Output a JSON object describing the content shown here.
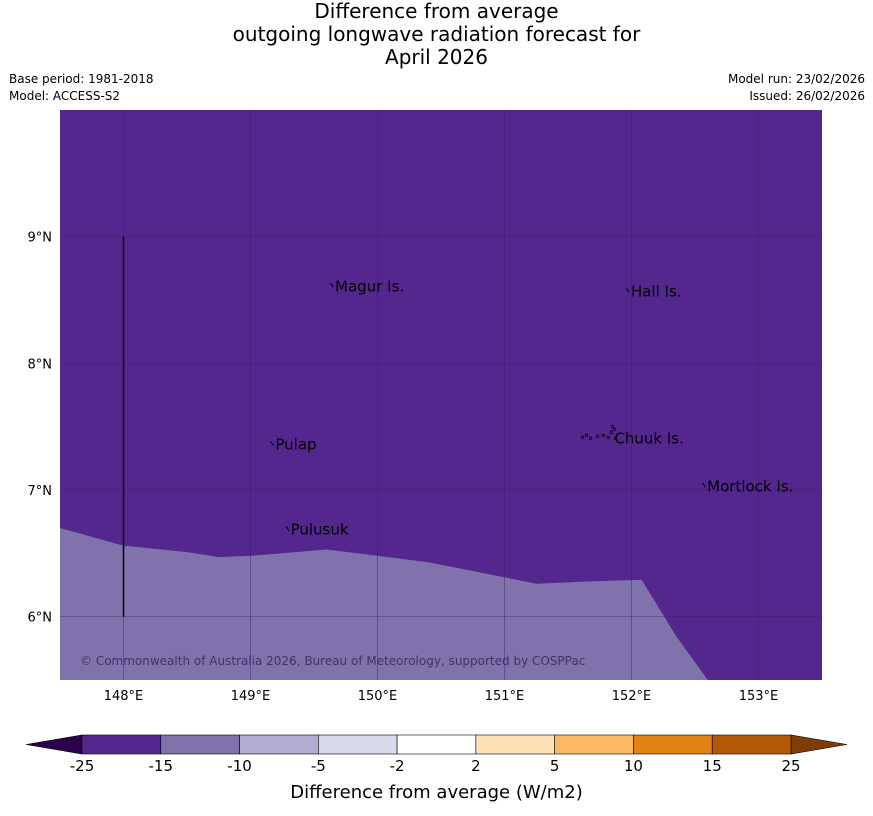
{
  "title": {
    "line1": "Difference from average",
    "line2": "outgoing longwave radiation forecast for",
    "line3": "April 2026"
  },
  "meta": {
    "base_period": "Base period: 1981-2018",
    "model": "Model: ACCESS-S2",
    "model_run": "Model run: 23/02/2026",
    "issued": "Issued: 26/02/2026"
  },
  "map": {
    "lon_range": [
      147.5,
      153.5
    ],
    "lat_range": [
      5.5,
      10.0
    ],
    "lon_ticks": [
      {
        "value": 148,
        "label": "148°E"
      },
      {
        "value": 149,
        "label": "149°E"
      },
      {
        "value": 150,
        "label": "150°E"
      },
      {
        "value": 151,
        "label": "151°E"
      },
      {
        "value": 152,
        "label": "152°E"
      },
      {
        "value": 153,
        "label": "153°E"
      }
    ],
    "lat_ticks": [
      {
        "value": 9,
        "label": "9°N"
      },
      {
        "value": 8,
        "label": "8°N"
      },
      {
        "value": 7,
        "label": "7°N"
      },
      {
        "value": 6,
        "label": "6°N"
      }
    ],
    "grid": true,
    "colors": {
      "band_minus25_minus15": "#54278f",
      "band_minus15_minus10": "#8073ac",
      "grid": "#3a1c66"
    },
    "boundary_lon_lat": [
      [
        147.5,
        6.7
      ],
      [
        148.0,
        6.56
      ],
      [
        148.5,
        6.51
      ],
      [
        148.75,
        6.47
      ],
      [
        149.0,
        6.48
      ],
      [
        149.6,
        6.53
      ],
      [
        150.4,
        6.43
      ],
      [
        150.8,
        6.35
      ],
      [
        151.25,
        6.26
      ],
      [
        151.7,
        6.28
      ],
      [
        152.08,
        6.29
      ],
      [
        152.35,
        5.85
      ],
      [
        152.6,
        5.5
      ]
    ],
    "places": [
      {
        "name": "Magur Is.",
        "lon": 149.65,
        "lat": 8.6
      },
      {
        "name": "Hall Is.",
        "lon": 151.98,
        "lat": 8.56
      },
      {
        "name": "Pulap",
        "lon": 149.18,
        "lat": 7.35
      },
      {
        "name": "Chuuk Is.",
        "lon": 151.85,
        "lat": 7.4
      },
      {
        "name": "Mortlock Is.",
        "lon": 152.58,
        "lat": 7.02
      },
      {
        "name": "Pulusuk",
        "lon": 149.3,
        "lat": 6.68
      }
    ],
    "boundary_line": {
      "lon": 148.0,
      "lat_from": 9.0,
      "lat_to": 6.0
    },
    "copyright": "© Commonwealth of Australia 2026, Bureau of Meteorology, supported by COSPPac"
  },
  "colorbar": {
    "label": "Difference from average (W/m2)",
    "ticks": [
      "-25",
      "-15",
      "-10",
      "-5",
      "-2",
      "2",
      "5",
      "10",
      "15",
      "25"
    ],
    "low_extend_color": "#2d004b",
    "high_extend_color": "#7f3b08",
    "segments": [
      "#54278f",
      "#8073ac",
      "#b2abd2",
      "#d8daeb",
      "#ffffff",
      "#fee0b6",
      "#fdb863",
      "#e08214",
      "#b35806"
    ]
  }
}
